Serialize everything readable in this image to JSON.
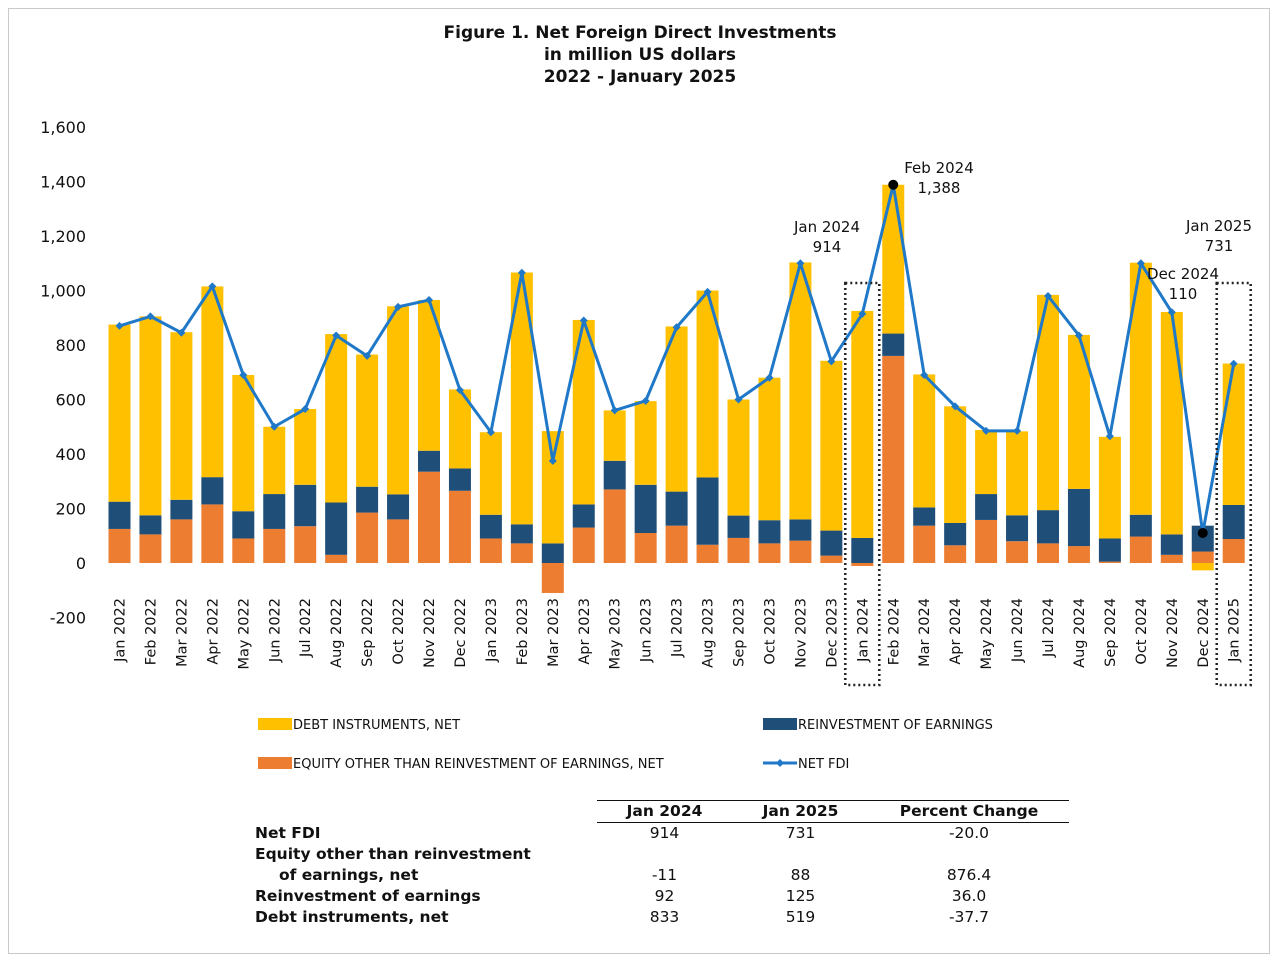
{
  "figure": {
    "title_line1": "Figure 1. Net Foreign Direct Investments",
    "title_line2": "in million US dollars",
    "title_line3": "2022 - January 2025"
  },
  "colors": {
    "debt": "#FFC000",
    "reinvest": "#1F4E79",
    "equity": "#ED7D31",
    "net_line": "#1F78C8"
  },
  "chart_data": {
    "type": "bar",
    "stacked": true,
    "categories": [
      "Jan 2022",
      "Feb 2022",
      "Mar 2022",
      "Apr 2022",
      "May 2022",
      "Jun 2022",
      "Jul 2022",
      "Aug 2022",
      "Sep 2022",
      "Oct 2022",
      "Nov 2022",
      "Dec 2022",
      "Jan 2023",
      "Feb 2023",
      "Mar 2023",
      "Apr 2023",
      "May 2023",
      "Jun 2023",
      "Jul 2023",
      "Aug 2023",
      "Sep 2023",
      "Oct 2023",
      "Nov 2023",
      "Dec 2023",
      "Jan 2024",
      "Feb 2024",
      "Mar 2024",
      "Apr 2024",
      "May 2024",
      "Jun 2024",
      "Jul 2024",
      "Aug 2024",
      "Sep 2024",
      "Oct 2024",
      "Nov 2024",
      "Dec 2024",
      "Jan 2025"
    ],
    "series": [
      {
        "name": "EQUITY OTHER THAN REINVESTMENT OF EARNINGS, NET",
        "values": [
          125,
          105,
          160,
          215,
          90,
          125,
          135,
          30,
          185,
          160,
          335,
          265,
          90,
          72,
          -110,
          130,
          270,
          110,
          137,
          67,
          92,
          72,
          82,
          27,
          -11,
          760,
          137,
          65,
          158,
          80,
          72,
          62,
          5,
          97,
          30,
          42,
          88
        ]
      },
      {
        "name": "REINVESTMENT OF EARNINGS",
        "values": [
          100,
          70,
          72,
          100,
          100,
          128,
          152,
          192,
          95,
          92,
          77,
          82,
          87,
          70,
          72,
          85,
          105,
          177,
          125,
          247,
          82,
          85,
          78,
          92,
          92,
          82,
          67,
          82,
          95,
          95,
          122,
          210,
          85,
          80,
          75,
          95,
          125
        ]
      },
      {
        "name": "DEBT INSTRUMENTS, NET",
        "values": [
          650,
          730,
          615,
          700,
          500,
          247,
          278,
          618,
          485,
          690,
          553,
          290,
          303,
          924,
          412,
          677,
          185,
          307,
          606,
          686,
          426,
          523,
          943,
          623,
          833,
          546,
          488,
          428,
          235,
          308,
          790,
          565,
          373,
          925,
          816,
          -27,
          519
        ]
      },
      {
        "name": "NET FDI",
        "type": "line",
        "values": [
          870,
          905,
          845,
          1015,
          690,
          500,
          565,
          835,
          760,
          940,
          965,
          635,
          480,
          1065,
          375,
          890,
          560,
          595,
          865,
          995,
          600,
          680,
          1100,
          740,
          914,
          1388,
          690,
          575,
          485,
          485,
          980,
          835,
          465,
          1100,
          920,
          110,
          731
        ]
      }
    ],
    "ylim": [
      -200,
      1600
    ],
    "yticks": [
      "-200",
      "0",
      "200",
      "400",
      "600",
      "800",
      "1,000",
      "1,200",
      "1,400",
      "1,600"
    ],
    "highlight_boxes": [
      "Jan 2024",
      "Jan 2025"
    ],
    "annotations": [
      {
        "label": "Jan 2024",
        "value": "914"
      },
      {
        "label": "Feb 2024",
        "value": "1,388"
      },
      {
        "label": "Dec 2024",
        "value": "110"
      },
      {
        "label": "Jan 2025",
        "value": "731"
      }
    ],
    "legend_placement": "bottom"
  },
  "legend": [
    {
      "key": "debt",
      "label": "DEBT INSTRUMENTS, NET"
    },
    {
      "key": "reinvest",
      "label": "REINVESTMENT OF EARNINGS"
    },
    {
      "key": "equity",
      "label": "EQUITY OTHER THAN REINVESTMENT OF EARNINGS, NET"
    },
    {
      "key": "net",
      "label": "NET FDI"
    }
  ],
  "table": {
    "headers": [
      "Jan 2024",
      "Jan 2025",
      "Percent Change"
    ],
    "rows": [
      {
        "label": "Net FDI",
        "v1": "914",
        "v2": "731",
        "v3": "-20.0"
      },
      {
        "label": "Equity other than reinvestment",
        "v1": "",
        "v2": "",
        "v3": ""
      },
      {
        "label": "of earnings, net",
        "v1": "-11",
        "v2": "88",
        "v3": "876.4"
      },
      {
        "label": "Reinvestment of earnings",
        "v1": "92",
        "v2": "125",
        "v3": "36.0"
      },
      {
        "label": "Debt instruments, net",
        "v1": "833",
        "v2": "519",
        "v3": "-37.7"
      }
    ]
  }
}
